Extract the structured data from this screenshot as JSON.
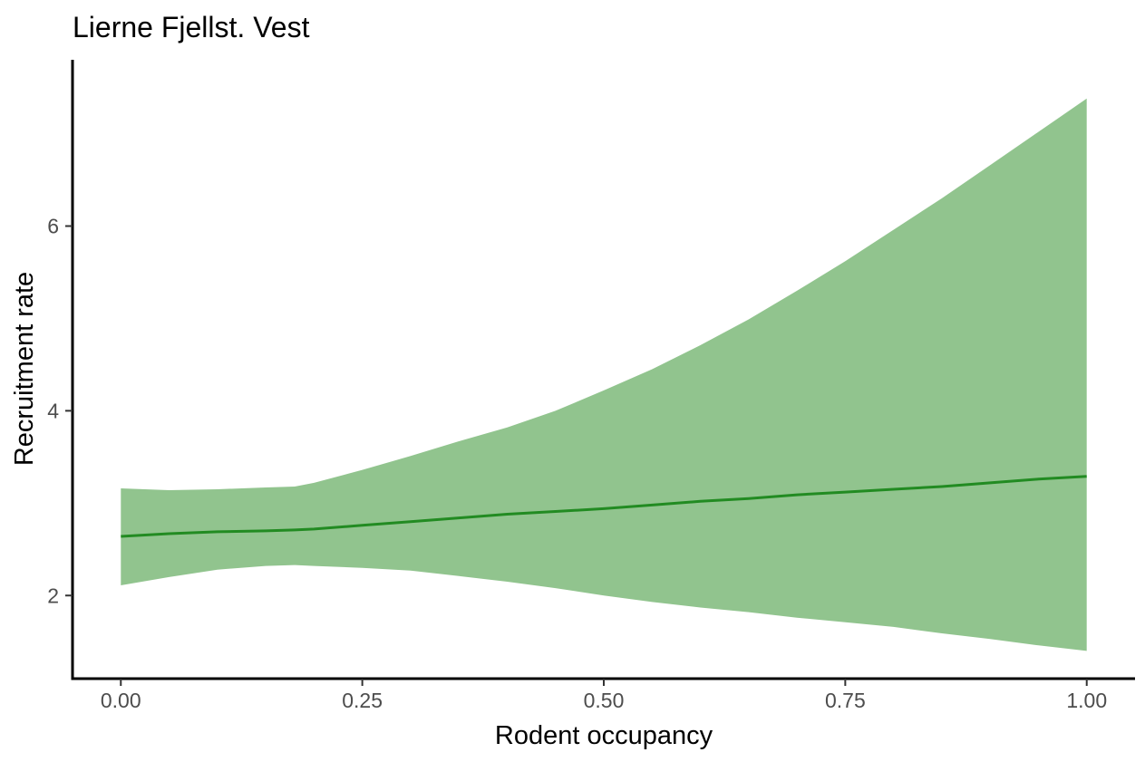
{
  "chart_data": {
    "type": "line",
    "title": "Lierne Fjellst. Vest",
    "xlabel": "Rodent occupancy",
    "ylabel": "Recruitment rate",
    "xlim": [
      -0.05,
      1.05
    ],
    "ylim": [
      1.1,
      7.8
    ],
    "x_ticks": [
      0.0,
      0.25,
      0.5,
      0.75,
      1.0
    ],
    "x_tick_labels": [
      "0.00",
      "0.25",
      "0.50",
      "0.75",
      "1.00"
    ],
    "y_ticks": [
      2,
      4,
      6
    ],
    "y_tick_labels": [
      "2",
      "4",
      "6"
    ],
    "grid": false,
    "legend": "none",
    "series": [
      {
        "x": [
          0.0,
          0.05,
          0.1,
          0.15,
          0.18,
          0.2,
          0.25,
          0.3,
          0.35,
          0.4,
          0.45,
          0.5,
          0.55,
          0.6,
          0.65,
          0.7,
          0.75,
          0.8,
          0.85,
          0.9,
          0.95,
          1.0
        ],
        "y": [
          2.64,
          2.67,
          2.69,
          2.7,
          2.71,
          2.72,
          2.76,
          2.8,
          2.84,
          2.88,
          2.91,
          2.94,
          2.98,
          3.02,
          3.05,
          3.09,
          3.12,
          3.15,
          3.18,
          3.22,
          3.26,
          3.29
        ],
        "lower": [
          2.11,
          2.2,
          2.28,
          2.32,
          2.33,
          2.32,
          2.3,
          2.27,
          2.21,
          2.15,
          2.08,
          2.0,
          1.93,
          1.87,
          1.82,
          1.76,
          1.71,
          1.66,
          1.59,
          1.53,
          1.46,
          1.4
        ],
        "upper": [
          3.16,
          3.14,
          3.15,
          3.17,
          3.18,
          3.22,
          3.36,
          3.51,
          3.67,
          3.82,
          4.0,
          4.22,
          4.45,
          4.71,
          4.99,
          5.3,
          5.62,
          5.96,
          6.3,
          6.66,
          7.02,
          7.38
        ],
        "line_color": "#228b22",
        "band_color": "#91c48e"
      }
    ]
  }
}
